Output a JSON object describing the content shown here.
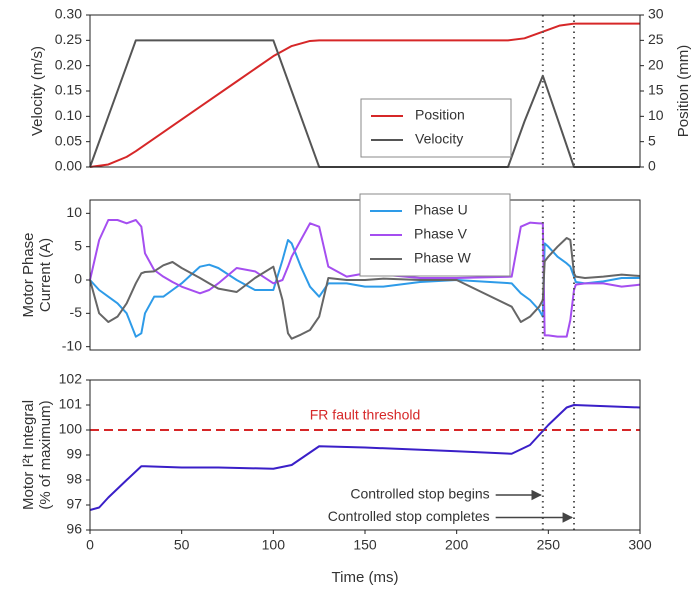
{
  "chart_data": [
    {
      "type": "line",
      "ylabel": [
        "Velocity (m/s)"
      ],
      "y2label": [
        "Position (mm)"
      ],
      "xlim": [
        0,
        300
      ],
      "ylim": [
        0,
        0.3
      ],
      "y2lim": [
        0,
        30
      ],
      "yticks": [
        {
          "value": 0,
          "label": "0.00"
        },
        {
          "value": 0.05,
          "label": "0.05"
        },
        {
          "value": 0.1,
          "label": "0.10"
        },
        {
          "value": 0.15,
          "label": "0.15"
        },
        {
          "value": 0.2,
          "label": "0.20"
        },
        {
          "value": 0.25,
          "label": "0.25"
        },
        {
          "value": 0.3,
          "label": "0.30"
        }
      ],
      "y2ticks": [
        0,
        5,
        10,
        15,
        20,
        25,
        30
      ],
      "vlines": [
        247,
        264
      ],
      "legend": "lower center",
      "x": [
        0,
        10,
        20,
        25,
        40,
        60,
        80,
        100,
        110,
        120,
        125,
        200,
        228,
        237,
        247,
        256,
        264,
        300
      ],
      "series": [
        {
          "name": "Position",
          "color": "#d62728",
          "axis": "y2",
          "values": [
            0,
            0.5,
            2,
            3.125,
            6.875,
            11.875,
            16.875,
            21.875,
            23.875,
            24.875,
            25,
            25,
            25,
            25.4,
            26.7,
            27.9,
            28.3,
            28.3
          ]
        },
        {
          "name": "Velocity",
          "color": "#555555",
          "values": [
            0,
            0.1,
            0.2,
            0.25,
            0.25,
            0.25,
            0.25,
            0.25,
            0.15,
            0.05,
            0,
            0,
            0,
            0.09,
            0.18,
            0.085,
            0,
            0
          ]
        }
      ]
    },
    {
      "type": "line",
      "ylabel": [
        "Motor Phase",
        "Current (A)"
      ],
      "xlim": [
        0,
        300
      ],
      "ylim": [
        -10.5,
        12
      ],
      "yticks": [
        -10,
        -5,
        0,
        5,
        10
      ],
      "vlines": [
        247,
        264
      ],
      "legend": "upper center",
      "x": [
        0,
        5,
        10,
        15,
        20,
        25,
        28,
        30,
        35,
        40,
        45,
        50,
        60,
        65,
        70,
        80,
        90,
        100,
        105,
        108,
        110,
        115,
        120,
        125,
        130,
        140,
        150,
        160,
        180,
        200,
        230,
        235,
        240,
        245,
        247,
        248,
        250,
        255,
        260,
        262,
        264,
        265,
        270,
        280,
        290,
        300
      ],
      "series": [
        {
          "name": "Phase U",
          "color": "#2e9be8",
          "values": [
            0,
            -1.5,
            -2.5,
            -3.5,
            -5,
            -8.5,
            -8,
            -5,
            -2.5,
            -2.5,
            -1.5,
            -0.5,
            2,
            2.3,
            1.8,
            0,
            -1.5,
            -1.5,
            3,
            6,
            5.5,
            2,
            -1,
            -2.5,
            -0.5,
            -0.5,
            -1,
            -1,
            -0.3,
            0,
            -0.5,
            -2,
            -3,
            -4.5,
            -5.5,
            5.5,
            5,
            3.5,
            2.5,
            2,
            0.5,
            -0.3,
            -0.5,
            -0.2,
            0.3,
            0.3
          ]
        },
        {
          "name": "Phase V",
          "color": "#a54ef0",
          "values": [
            0,
            6,
            9,
            9,
            8.5,
            9,
            8,
            4,
            1.5,
            0.5,
            -0.3,
            -1,
            -2,
            -1.5,
            -0.5,
            1.8,
            1.3,
            -0.5,
            0,
            2,
            3.5,
            6,
            8.5,
            8,
            2,
            0.5,
            1,
            0.8,
            0.3,
            0.3,
            0.5,
            8,
            8.6,
            8.5,
            8.5,
            -8.3,
            -8.3,
            -8.5,
            -8.5,
            -6,
            -1.5,
            -0.7,
            -0.5,
            -0.5,
            -1,
            -0.7
          ]
        },
        {
          "name": "Phase W",
          "color": "#666666",
          "values": [
            0,
            -5,
            -6.3,
            -5.5,
            -3.5,
            -0.5,
            1,
            1.2,
            1.3,
            2.2,
            2.7,
            1.8,
            0.3,
            -0.5,
            -1.3,
            -1.8,
            0.3,
            2,
            -3,
            -8,
            -8.8,
            -8.2,
            -7.5,
            -5.5,
            0.3,
            0,
            0,
            0.2,
            0,
            0,
            -4,
            -6.3,
            -5.5,
            -4,
            -3,
            2.8,
            3.5,
            5,
            6.3,
            6,
            1,
            0.5,
            0.3,
            0.5,
            0.8,
            0.6
          ]
        }
      ]
    },
    {
      "type": "line",
      "ylabel": [
        "Motor I²t Integral",
        "(% of maximum)"
      ],
      "xlabel": "Time (ms)",
      "xlim": [
        0,
        300
      ],
      "ylim": [
        96,
        102
      ],
      "xticks": [
        0,
        50,
        100,
        150,
        200,
        250,
        300
      ],
      "yticks": [
        96,
        97,
        98,
        99,
        100,
        101,
        102
      ],
      "vlines": [
        247,
        264
      ],
      "hlines": [
        {
          "value": 100,
          "label": "FR fault threshold",
          "color": "#d62728"
        }
      ],
      "annotations": [
        {
          "text": "Controlled stop begins",
          "xy": [
            247,
            97.4
          ],
          "xytext": [
            218,
            97.4
          ]
        },
        {
          "text": "Controlled stop completes",
          "xy": [
            264,
            96.5
          ],
          "xytext": [
            218,
            96.5
          ]
        }
      ],
      "x": [
        0,
        5,
        10,
        20,
        28,
        30,
        50,
        70,
        100,
        110,
        120,
        125,
        150,
        200,
        230,
        240,
        250,
        260,
        264,
        300
      ],
      "series": [
        {
          "name": "I²t",
          "color": "#3a1fc8",
          "values": [
            96.8,
            96.9,
            97.3,
            98,
            98.55,
            98.55,
            98.5,
            98.5,
            98.45,
            98.6,
            99.1,
            99.35,
            99.3,
            99.15,
            99.05,
            99.4,
            100.2,
            100.9,
            101,
            100.9
          ]
        }
      ]
    }
  ]
}
